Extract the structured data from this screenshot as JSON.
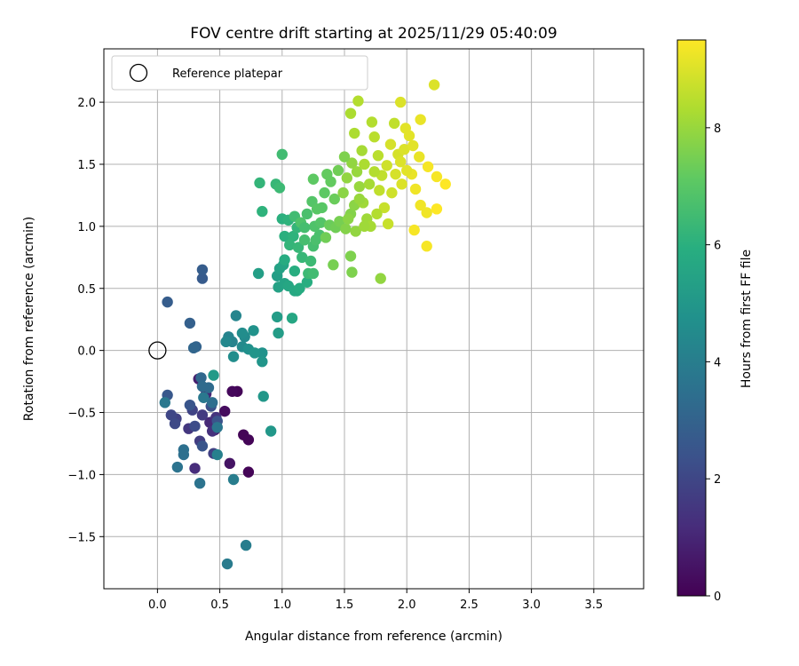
{
  "chart_data": {
    "type": "scatter",
    "title": "FOV centre drift starting at 2025/11/29 05:40:09",
    "xlabel": "Angular distance from reference (arcmin)",
    "ylabel": "Rotation from reference (arcmin)",
    "xlim": [
      -0.43,
      3.9
    ],
    "ylim": [
      -1.92,
      2.43
    ],
    "xticks": [
      "0.0",
      "0.5",
      "1.0",
      "1.5",
      "2.0",
      "2.5",
      "3.0",
      "3.5"
    ],
    "xtick_values": [
      0.0,
      0.5,
      1.0,
      1.5,
      2.0,
      2.5,
      3.0,
      3.5
    ],
    "yticks": [
      "−1.5",
      "−1.0",
      "−0.5",
      "0.0",
      "0.5",
      "1.0",
      "1.5",
      "2.0"
    ],
    "ytick_values": [
      -1.5,
      -1.0,
      -0.5,
      0.0,
      0.5,
      1.0,
      1.5,
      2.0
    ],
    "grid": true,
    "legend": {
      "placement": "top-left",
      "entries": [
        "Reference platepar"
      ]
    },
    "reference_point": {
      "x": 0.0,
      "y": 0.0,
      "label": "Reference platepar"
    },
    "colorbar": {
      "label": "Hours from first FF file",
      "range": [
        0,
        9.5
      ],
      "ticks": [
        "0",
        "2",
        "4",
        "6",
        "8"
      ],
      "tick_values": [
        0,
        2,
        4,
        6,
        8
      ],
      "colormap": "viridis"
    },
    "series": [
      {
        "points": [
          {
            "x": 0.64,
            "y": -0.33,
            "c": 0.1
          },
          {
            "x": 0.6,
            "y": -0.33,
            "c": 0.2
          },
          {
            "x": 0.69,
            "y": -0.68,
            "c": 0.1
          },
          {
            "x": 0.73,
            "y": -0.72,
            "c": 0.1
          },
          {
            "x": 0.73,
            "y": -0.98,
            "c": 0.1
          },
          {
            "x": 0.54,
            "y": -0.49,
            "c": 0.3
          },
          {
            "x": 0.58,
            "y": -0.91,
            "c": 0.5
          },
          {
            "x": 0.46,
            "y": -0.64,
            "c": 0.6
          },
          {
            "x": 0.47,
            "y": -0.6,
            "c": 0.7
          },
          {
            "x": 0.33,
            "y": -0.23,
            "c": 0.8
          },
          {
            "x": 0.39,
            "y": -0.35,
            "c": 1.0
          },
          {
            "x": 0.42,
            "y": -0.58,
            "c": 1.1
          },
          {
            "x": 0.3,
            "y": -0.95,
            "c": 1.2
          },
          {
            "x": 0.44,
            "y": -0.65,
            "c": 1.3
          },
          {
            "x": 0.47,
            "y": -0.54,
            "c": 1.4
          },
          {
            "x": 0.25,
            "y": -0.63,
            "c": 1.5
          },
          {
            "x": 0.36,
            "y": -0.52,
            "c": 1.6
          },
          {
            "x": 0.34,
            "y": -0.73,
            "c": 1.7
          },
          {
            "x": 0.45,
            "y": -0.83,
            "c": 1.8
          },
          {
            "x": 0.15,
            "y": -0.55,
            "c": 1.8
          },
          {
            "x": 0.28,
            "y": -0.48,
            "c": 1.9
          },
          {
            "x": 0.11,
            "y": -0.52,
            "c": 2.0
          },
          {
            "x": 0.14,
            "y": -0.59,
            "c": 2.1
          },
          {
            "x": 0.3,
            "y": -0.61,
            "c": 2.2
          },
          {
            "x": 0.43,
            "y": -0.45,
            "c": 2.3
          },
          {
            "x": 0.48,
            "y": -0.57,
            "c": 2.4
          },
          {
            "x": 0.36,
            "y": -0.77,
            "c": 2.5
          },
          {
            "x": 0.26,
            "y": -0.44,
            "c": 2.5
          },
          {
            "x": 0.08,
            "y": -0.36,
            "c": 2.6
          },
          {
            "x": 0.36,
            "y": 0.58,
            "c": 2.7
          },
          {
            "x": 0.36,
            "y": 0.65,
            "c": 2.8
          },
          {
            "x": 0.08,
            "y": 0.39,
            "c": 2.8
          },
          {
            "x": 0.26,
            "y": 0.22,
            "c": 2.9
          },
          {
            "x": 0.31,
            "y": 0.03,
            "c": 3.0
          },
          {
            "x": 0.29,
            "y": 0.02,
            "c": 3.1
          },
          {
            "x": 0.35,
            "y": -0.22,
            "c": 3.2
          },
          {
            "x": 0.41,
            "y": -0.3,
            "c": 3.3
          },
          {
            "x": 0.36,
            "y": -0.29,
            "c": 3.3
          },
          {
            "x": 0.44,
            "y": -0.42,
            "c": 3.4
          },
          {
            "x": 0.21,
            "y": -0.8,
            "c": 3.5
          },
          {
            "x": 0.21,
            "y": -0.84,
            "c": 3.5
          },
          {
            "x": 0.16,
            "y": -0.94,
            "c": 3.6
          },
          {
            "x": 0.34,
            "y": -1.07,
            "c": 3.6
          },
          {
            "x": 0.48,
            "y": -0.62,
            "c": 3.7
          },
          {
            "x": 0.37,
            "y": -0.38,
            "c": 3.8
          },
          {
            "x": 0.06,
            "y": -0.42,
            "c": 3.8
          },
          {
            "x": 0.56,
            "y": -1.72,
            "c": 3.9
          },
          {
            "x": 0.71,
            "y": -1.57,
            "c": 4.0
          },
          {
            "x": 0.61,
            "y": -1.04,
            "c": 4.0
          },
          {
            "x": 0.48,
            "y": -0.84,
            "c": 4.1
          },
          {
            "x": 0.6,
            "y": 0.07,
            "c": 4.2
          },
          {
            "x": 0.57,
            "y": 0.11,
            "c": 4.2
          },
          {
            "x": 0.63,
            "y": 0.28,
            "c": 4.3
          },
          {
            "x": 0.55,
            "y": 0.07,
            "c": 4.4
          },
          {
            "x": 0.68,
            "y": 0.03,
            "c": 4.5
          },
          {
            "x": 0.7,
            "y": 0.11,
            "c": 4.5
          },
          {
            "x": 0.61,
            "y": -0.05,
            "c": 4.6
          },
          {
            "x": 0.68,
            "y": 0.14,
            "c": 4.6
          },
          {
            "x": 0.73,
            "y": 0.01,
            "c": 4.7
          },
          {
            "x": 0.77,
            "y": 0.16,
            "c": 4.8
          },
          {
            "x": 0.84,
            "y": -0.02,
            "c": 4.8
          },
          {
            "x": 0.78,
            "y": -0.02,
            "c": 4.9
          },
          {
            "x": 0.84,
            "y": -0.09,
            "c": 4.9
          },
          {
            "x": 0.85,
            "y": -0.37,
            "c": 5.0
          },
          {
            "x": 0.91,
            "y": -0.65,
            "c": 5.0
          },
          {
            "x": 0.45,
            "y": -0.2,
            "c": 5.1
          },
          {
            "x": 0.97,
            "y": 0.14,
            "c": 5.2
          },
          {
            "x": 0.96,
            "y": 0.27,
            "c": 5.2
          },
          {
            "x": 0.81,
            "y": 0.62,
            "c": 5.3
          },
          {
            "x": 0.96,
            "y": 0.6,
            "c": 5.3
          },
          {
            "x": 0.97,
            "y": 0.51,
            "c": 5.4
          },
          {
            "x": 0.98,
            "y": 0.66,
            "c": 5.4
          },
          {
            "x": 1.01,
            "y": 0.69,
            "c": 5.5
          },
          {
            "x": 1.02,
            "y": 0.54,
            "c": 5.5
          },
          {
            "x": 1.08,
            "y": 0.26,
            "c": 5.6
          },
          {
            "x": 1.05,
            "y": 0.52,
            "c": 5.6
          },
          {
            "x": 1.1,
            "y": 0.48,
            "c": 5.7
          },
          {
            "x": 1.12,
            "y": 0.48,
            "c": 5.7
          },
          {
            "x": 1.14,
            "y": 0.5,
            "c": 5.8
          },
          {
            "x": 1.02,
            "y": 0.73,
            "c": 5.8
          },
          {
            "x": 1.1,
            "y": 0.64,
            "c": 5.9
          },
          {
            "x": 1.2,
            "y": 0.55,
            "c": 5.9
          },
          {
            "x": 1.02,
            "y": 0.92,
            "c": 6.0
          },
          {
            "x": 1.0,
            "y": 1.06,
            "c": 6.0
          },
          {
            "x": 1.05,
            "y": 1.05,
            "c": 6.1
          },
          {
            "x": 1.09,
            "y": 0.92,
            "c": 6.1
          },
          {
            "x": 1.12,
            "y": 0.99,
            "c": 6.2
          },
          {
            "x": 1.06,
            "y": 0.85,
            "c": 6.2
          },
          {
            "x": 1.13,
            "y": 0.83,
            "c": 6.3
          },
          {
            "x": 1.16,
            "y": 0.75,
            "c": 6.3
          },
          {
            "x": 1.21,
            "y": 0.62,
            "c": 6.4
          },
          {
            "x": 1.23,
            "y": 0.72,
            "c": 6.4
          },
          {
            "x": 1.25,
            "y": 0.62,
            "c": 6.5
          },
          {
            "x": 1.1,
            "y": 1.08,
            "c": 6.5
          },
          {
            "x": 1.18,
            "y": 0.89,
            "c": 6.6
          },
          {
            "x": 1.25,
            "y": 0.84,
            "c": 6.6
          },
          {
            "x": 1.27,
            "y": 0.89,
            "c": 6.7
          },
          {
            "x": 1.3,
            "y": 0.93,
            "c": 6.7
          },
          {
            "x": 1.15,
            "y": 1.03,
            "c": 6.8
          },
          {
            "x": 1.26,
            "y": 1.0,
            "c": 6.8
          },
          {
            "x": 1.31,
            "y": 1.03,
            "c": 6.9
          },
          {
            "x": 0.95,
            "y": 1.34,
            "c": 6.3
          },
          {
            "x": 0.98,
            "y": 1.31,
            "c": 6.4
          },
          {
            "x": 0.82,
            "y": 1.35,
            "c": 6.2
          },
          {
            "x": 0.84,
            "y": 1.12,
            "c": 6.1
          },
          {
            "x": 1.0,
            "y": 1.58,
            "c": 6.5
          },
          {
            "x": 1.24,
            "y": 1.2,
            "c": 6.9
          },
          {
            "x": 1.28,
            "y": 1.14,
            "c": 7.0
          },
          {
            "x": 1.32,
            "y": 1.15,
            "c": 7.0
          },
          {
            "x": 1.34,
            "y": 1.27,
            "c": 7.1
          },
          {
            "x": 1.25,
            "y": 1.38,
            "c": 7.1
          },
          {
            "x": 1.36,
            "y": 1.42,
            "c": 7.2
          },
          {
            "x": 1.39,
            "y": 1.36,
            "c": 7.2
          },
          {
            "x": 1.42,
            "y": 1.22,
            "c": 7.3
          },
          {
            "x": 1.38,
            "y": 1.01,
            "c": 7.3
          },
          {
            "x": 1.35,
            "y": 0.91,
            "c": 7.4
          },
          {
            "x": 1.43,
            "y": 0.99,
            "c": 7.4
          },
          {
            "x": 1.46,
            "y": 1.04,
            "c": 7.5
          },
          {
            "x": 1.41,
            "y": 0.69,
            "c": 7.5
          },
          {
            "x": 1.55,
            "y": 0.76,
            "c": 7.6
          },
          {
            "x": 1.56,
            "y": 0.63,
            "c": 7.6
          },
          {
            "x": 1.51,
            "y": 0.98,
            "c": 7.7
          },
          {
            "x": 1.55,
            "y": 1.1,
            "c": 7.7
          },
          {
            "x": 1.58,
            "y": 1.17,
            "c": 7.8
          },
          {
            "x": 1.49,
            "y": 1.27,
            "c": 7.8
          },
          {
            "x": 1.52,
            "y": 1.39,
            "c": 7.9
          },
          {
            "x": 1.56,
            "y": 1.51,
            "c": 7.9
          },
          {
            "x": 1.6,
            "y": 1.44,
            "c": 8.0
          },
          {
            "x": 1.62,
            "y": 1.32,
            "c": 8.0
          },
          {
            "x": 1.65,
            "y": 1.19,
            "c": 8.1
          },
          {
            "x": 1.68,
            "y": 1.06,
            "c": 8.1
          },
          {
            "x": 1.71,
            "y": 1.0,
            "c": 8.2
          },
          {
            "x": 1.64,
            "y": 1.61,
            "c": 8.2
          },
          {
            "x": 1.58,
            "y": 1.75,
            "c": 8.3
          },
          {
            "x": 1.55,
            "y": 1.91,
            "c": 8.3
          },
          {
            "x": 1.61,
            "y": 2.01,
            "c": 8.4
          },
          {
            "x": 1.72,
            "y": 1.84,
            "c": 8.4
          },
          {
            "x": 1.74,
            "y": 1.72,
            "c": 8.5
          },
          {
            "x": 1.77,
            "y": 1.57,
            "c": 8.5
          },
          {
            "x": 1.8,
            "y": 1.41,
            "c": 8.6
          },
          {
            "x": 1.78,
            "y": 1.29,
            "c": 8.6
          },
          {
            "x": 1.82,
            "y": 1.15,
            "c": 8.7
          },
          {
            "x": 1.79,
            "y": 0.58,
            "c": 7.9
          },
          {
            "x": 1.85,
            "y": 1.02,
            "c": 8.7
          },
          {
            "x": 1.88,
            "y": 1.27,
            "c": 8.8
          },
          {
            "x": 1.84,
            "y": 1.49,
            "c": 8.8
          },
          {
            "x": 1.87,
            "y": 1.66,
            "c": 8.9
          },
          {
            "x": 1.93,
            "y": 1.58,
            "c": 8.9
          },
          {
            "x": 1.95,
            "y": 1.52,
            "c": 9.0
          },
          {
            "x": 1.98,
            "y": 1.62,
            "c": 9.0
          },
          {
            "x": 1.95,
            "y": 2.0,
            "c": 9.0
          },
          {
            "x": 1.99,
            "y": 1.79,
            "c": 9.1
          },
          {
            "x": 2.02,
            "y": 1.73,
            "c": 9.1
          },
          {
            "x": 2.05,
            "y": 1.65,
            "c": 9.1
          },
          {
            "x": 2.1,
            "y": 1.56,
            "c": 9.2
          },
          {
            "x": 2.11,
            "y": 1.86,
            "c": 9.2
          },
          {
            "x": 2.04,
            "y": 1.42,
            "c": 9.2
          },
          {
            "x": 2.07,
            "y": 1.3,
            "c": 9.3
          },
          {
            "x": 2.11,
            "y": 1.17,
            "c": 9.3
          },
          {
            "x": 2.16,
            "y": 1.11,
            "c": 9.3
          },
          {
            "x": 2.06,
            "y": 0.97,
            "c": 9.4
          },
          {
            "x": 2.16,
            "y": 0.84,
            "c": 9.4
          },
          {
            "x": 2.17,
            "y": 1.48,
            "c": 9.4
          },
          {
            "x": 2.24,
            "y": 1.4,
            "c": 9.4
          },
          {
            "x": 2.31,
            "y": 1.34,
            "c": 9.5
          },
          {
            "x": 2.24,
            "y": 1.14,
            "c": 9.5
          },
          {
            "x": 2.22,
            "y": 2.14,
            "c": 9.0
          },
          {
            "x": 1.9,
            "y": 1.83,
            "c": 8.6
          },
          {
            "x": 1.5,
            "y": 1.56,
            "c": 7.6
          },
          {
            "x": 1.45,
            "y": 1.45,
            "c": 7.4
          },
          {
            "x": 1.2,
            "y": 1.1,
            "c": 6.7
          },
          {
            "x": 1.18,
            "y": 0.99,
            "c": 6.6
          },
          {
            "x": 1.62,
            "y": 1.22,
            "c": 8.0
          },
          {
            "x": 1.7,
            "y": 1.34,
            "c": 8.2
          },
          {
            "x": 1.74,
            "y": 1.44,
            "c": 8.4
          },
          {
            "x": 1.66,
            "y": 1.5,
            "c": 8.3
          },
          {
            "x": 1.53,
            "y": 1.06,
            "c": 7.8
          },
          {
            "x": 1.59,
            "y": 0.96,
            "c": 7.9
          },
          {
            "x": 1.66,
            "y": 1.0,
            "c": 8.1
          },
          {
            "x": 1.76,
            "y": 1.1,
            "c": 8.4
          },
          {
            "x": 1.91,
            "y": 1.42,
            "c": 8.9
          },
          {
            "x": 2.0,
            "y": 1.45,
            "c": 9.1
          },
          {
            "x": 1.96,
            "y": 1.34,
            "c": 9.0
          }
        ]
      }
    ]
  }
}
